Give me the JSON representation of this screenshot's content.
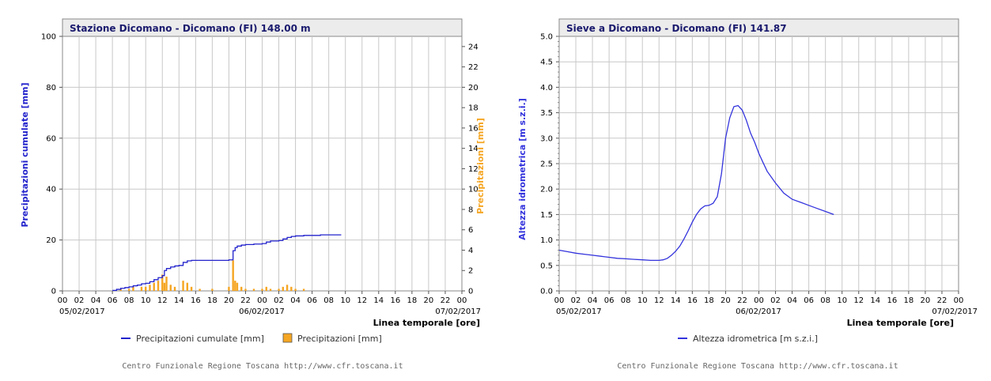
{
  "colors": {
    "cumulative": "#2222cc",
    "bars": "#f5a623",
    "level": "#3333dd",
    "grid": "#c8c8c8",
    "title_bg": "#ececec"
  },
  "credit": "Centro Funzionale Regione Toscana http://www.cfr.toscana.it",
  "chart_data": [
    {
      "type": "line",
      "title": "Stazione Dicomano - Dicomano (FI) 148.00 m",
      "xlabel": "Linea temporale [ore]",
      "ylabel": "Precipitazioni cumulate [mm]",
      "ylabel_right": "Precipitazioni [mm]",
      "xlim": [
        0,
        48
      ],
      "ylim": [
        0,
        100
      ],
      "ylim_right": [
        0,
        25
      ],
      "x_tick_labels": [
        "00",
        "02",
        "04",
        "06",
        "08",
        "10",
        "12",
        "14",
        "16",
        "18",
        "20",
        "22",
        "00",
        "02",
        "04",
        "06",
        "08",
        "10",
        "12",
        "14",
        "16",
        "18",
        "20",
        "22",
        "00"
      ],
      "y_ticks": [
        "0",
        "20",
        "40",
        "60",
        "80",
        "100"
      ],
      "y_ticks_right": [
        "0",
        "2",
        "4",
        "6",
        "8",
        "10",
        "12",
        "14",
        "16",
        "18",
        "20",
        "22",
        "24"
      ],
      "date_labels": [
        {
          "x": 0,
          "text": "05/02/2017"
        },
        {
          "x": 24,
          "text": "06/02/2017"
        },
        {
          "x": 48,
          "text": "07/02/2017"
        }
      ],
      "grid": true,
      "legend": "bottom",
      "legend_items": [
        "Precipitazioni cumulate [mm]",
        "Precipitazioni [mm]"
      ],
      "series": [
        {
          "name": "Precipitazioni cumulate [mm]",
          "type": "step-line",
          "x": [
            6.0,
            6.5,
            7.0,
            7.5,
            8.0,
            8.5,
            9.0,
            9.5,
            10.0,
            10.5,
            11.0,
            11.5,
            12.0,
            12.25,
            12.5,
            13.0,
            13.5,
            14.0,
            14.5,
            15.0,
            15.5,
            16.0,
            18.0,
            20.0,
            20.5,
            20.75,
            21.0,
            21.5,
            22.0,
            23.0,
            24.0,
            24.5,
            25.0,
            26.0,
            26.5,
            27.0,
            27.5,
            28.0,
            29.0,
            30.0,
            31.0,
            32.0,
            33.5
          ],
          "y": [
            0.2,
            0.6,
            1.0,
            1.3,
            1.6,
            2.0,
            2.3,
            2.8,
            3.0,
            3.6,
            4.4,
            5.2,
            6.0,
            8.0,
            8.8,
            9.4,
            9.8,
            10.0,
            11.2,
            11.8,
            12.0,
            12.0,
            12.0,
            12.2,
            15.8,
            17.0,
            17.6,
            18.0,
            18.2,
            18.4,
            18.6,
            19.2,
            19.6,
            19.8,
            20.4,
            21.0,
            21.4,
            21.6,
            21.8,
            21.8,
            22.0,
            22.0,
            22.0
          ]
        },
        {
          "name": "Precipitazioni [mm]",
          "type": "bar",
          "axis": "right",
          "x": [
            7.0,
            8.0,
            8.5,
            9.5,
            10.0,
            10.5,
            11.0,
            11.5,
            12.0,
            12.25,
            12.5,
            13.0,
            13.5,
            14.5,
            15.0,
            15.5,
            16.5,
            18.0,
            20.0,
            20.5,
            20.75,
            21.0,
            21.5,
            22.0,
            23.0,
            24.0,
            24.5,
            25.0,
            26.0,
            26.5,
            27.0,
            27.5,
            28.0,
            29.0
          ],
          "y": [
            0.2,
            0.2,
            0.4,
            0.4,
            0.4,
            0.6,
            0.8,
            1.0,
            1.6,
            0.8,
            1.4,
            0.6,
            0.4,
            1.0,
            0.8,
            0.4,
            0.2,
            0.2,
            0.4,
            3.0,
            1.0,
            0.8,
            0.4,
            0.2,
            0.2,
            0.2,
            0.4,
            0.2,
            0.2,
            0.4,
            0.6,
            0.4,
            0.2,
            0.2
          ]
        }
      ]
    },
    {
      "type": "line",
      "title": "Sieve a Dicomano - Dicomano (FI) 141.87",
      "xlabel": "Linea temporale [ore]",
      "ylabel": "Altezza idrometrica [m s.z.i.]",
      "xlim": [
        0,
        48
      ],
      "ylim": [
        0,
        5
      ],
      "x_tick_labels": [
        "00",
        "02",
        "04",
        "06",
        "08",
        "10",
        "12",
        "14",
        "16",
        "18",
        "20",
        "22",
        "00",
        "02",
        "04",
        "06",
        "08",
        "10",
        "12",
        "14",
        "16",
        "18",
        "20",
        "22",
        "00"
      ],
      "y_ticks": [
        "0.0",
        "0.5",
        "1.0",
        "1.5",
        "2.0",
        "2.5",
        "3.0",
        "3.5",
        "4.0",
        "4.5",
        "5.0"
      ],
      "date_labels": [
        {
          "x": 0,
          "text": "05/02/2017"
        },
        {
          "x": 24,
          "text": "06/02/2017"
        },
        {
          "x": 48,
          "text": "07/02/2017"
        }
      ],
      "grid": true,
      "legend": "bottom",
      "legend_items": [
        "Altezza idrometrica [m s.z.i.]"
      ],
      "series": [
        {
          "name": "Altezza idrometrica [m s.z.i.]",
          "x": [
            0,
            1,
            2,
            3,
            4,
            5,
            6,
            7,
            8,
            9,
            10,
            11,
            12,
            12.5,
            13,
            13.5,
            14,
            14.5,
            15,
            15.5,
            16,
            16.5,
            17,
            17.5,
            18,
            18.5,
            19,
            19.5,
            20,
            20.5,
            21,
            21.5,
            22,
            22.5,
            23,
            23.5,
            24,
            24.5,
            25,
            26,
            27,
            28,
            29,
            30,
            31,
            32,
            33
          ],
          "y": [
            0.8,
            0.77,
            0.74,
            0.72,
            0.7,
            0.68,
            0.66,
            0.64,
            0.63,
            0.62,
            0.61,
            0.6,
            0.6,
            0.61,
            0.64,
            0.7,
            0.78,
            0.88,
            1.02,
            1.18,
            1.35,
            1.5,
            1.61,
            1.67,
            1.68,
            1.72,
            1.85,
            2.3,
            3.0,
            3.4,
            3.62,
            3.64,
            3.55,
            3.35,
            3.1,
            2.92,
            2.7,
            2.52,
            2.35,
            2.12,
            1.92,
            1.8,
            1.74,
            1.68,
            1.62,
            1.56,
            1.5
          ]
        }
      ]
    }
  ]
}
